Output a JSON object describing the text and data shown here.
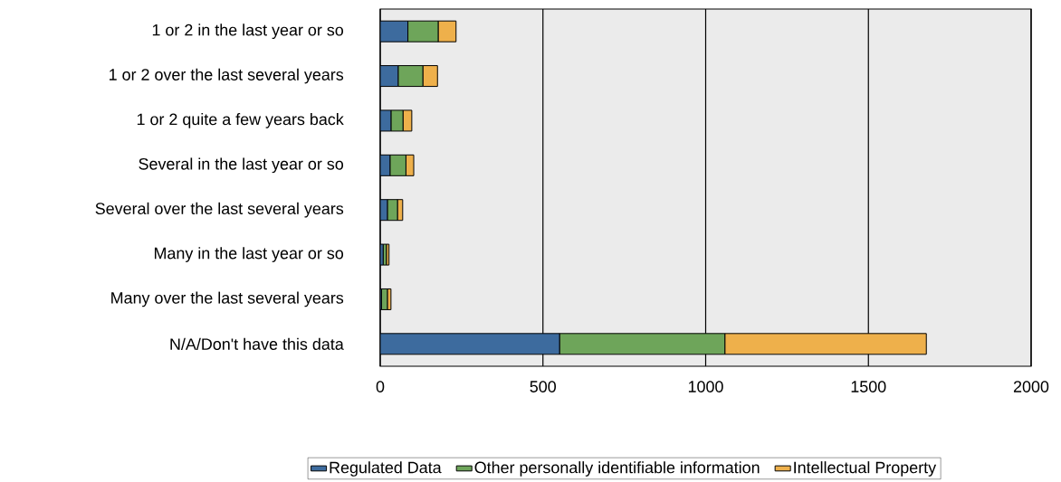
{
  "chart_data": {
    "type": "bar",
    "orientation": "horizontal",
    "stacked": true,
    "categories": [
      "1 or 2 in the last year or so",
      "1 or 2 over the last several years",
      "1 or 2 quite a few years back",
      "Several in the last year or so",
      "Several over the last several years",
      "Many in the last year or so",
      "Many over the last several years",
      "N/A/Don't have this data"
    ],
    "series": [
      {
        "name": "Regulated Data",
        "color": "#3d6b9e",
        "values": [
          85,
          55,
          33,
          30,
          22,
          9,
          4,
          551
        ]
      },
      {
        "name": "Other personally identifiable information",
        "color": "#6ea55a",
        "values": [
          93,
          76,
          37,
          49,
          31,
          10,
          18,
          508
        ]
      },
      {
        "name": "Intellectual Property",
        "color": "#eeb04b",
        "values": [
          55,
          45,
          27,
          24,
          16,
          8,
          11,
          619
        ]
      }
    ],
    "xlim": [
      0,
      2000
    ],
    "xticks": [
      0,
      500,
      1000,
      1500,
      2000
    ],
    "grid": "x",
    "legend": "bottom"
  }
}
